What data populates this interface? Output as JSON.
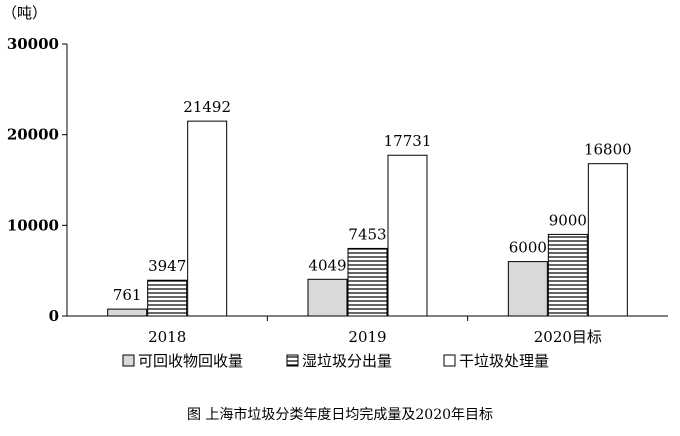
{
  "caption": "图  上海市垃圾分类年度日均完成量及2020年目标",
  "chart_data": {
    "type": "bar",
    "title": "",
    "unit_label": "（吨）",
    "categories": [
      "2018",
      "2019",
      "2020目标"
    ],
    "series": [
      {
        "name": "可回收物回收量",
        "values": [
          761,
          4049,
          6000
        ],
        "pattern": "solid",
        "color": "#d9d9d9"
      },
      {
        "name": "湿垃圾分出量",
        "values": [
          3947,
          7453,
          9000
        ],
        "pattern": "horizontal-lines",
        "color": "#ffffff"
      },
      {
        "name": "干垃圾处理量",
        "values": [
          21492,
          17731,
          16800
        ],
        "pattern": "none",
        "color": "#ffffff"
      }
    ],
    "yticks": [
      0,
      10000,
      20000,
      30000
    ],
    "ylim": [
      0,
      30000
    ],
    "grid": false,
    "legend": "bottom",
    "data_labels": true
  }
}
